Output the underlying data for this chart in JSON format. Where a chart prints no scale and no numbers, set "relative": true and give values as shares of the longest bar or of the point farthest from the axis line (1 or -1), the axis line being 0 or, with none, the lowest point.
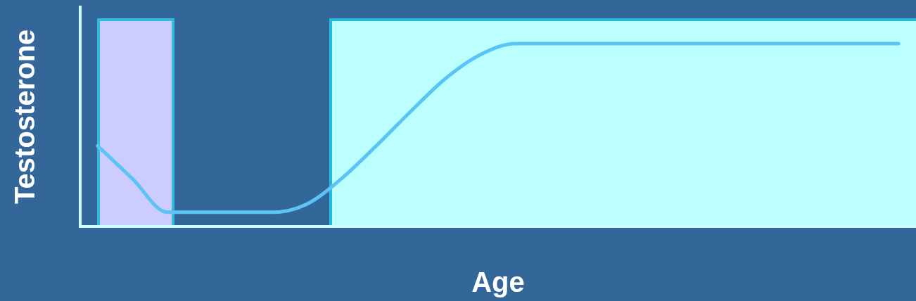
{
  "chart_data": {
    "type": "line",
    "relative": true,
    "xlabel": "Age",
    "ylabel": "Testosterone",
    "categories": [
      null,
      null,
      null,
      null,
      null,
      null,
      null,
      null,
      null,
      null,
      null,
      null,
      null,
      null,
      null,
      null,
      null,
      null,
      null,
      null,
      null,
      null,
      null,
      null
    ],
    "series": [
      {
        "color": "#5bc4f5",
        "values": [
          0.44,
          0.26,
          0.076,
          0.076,
          0.076,
          0.076,
          0.12,
          0.26,
          0.44,
          0.63,
          0.81,
          0.94,
          1,
          1,
          1,
          1,
          1,
          1,
          1,
          1,
          1,
          1,
          1,
          1
        ]
      }
    ],
    "grid": false,
    "legend": false,
    "marker": "none",
    "line_style": "solid"
  }
}
